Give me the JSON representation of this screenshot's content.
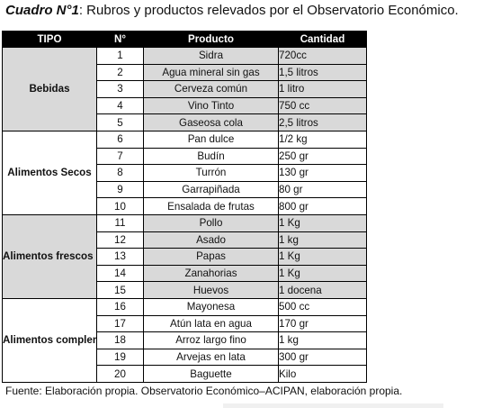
{
  "caption": {
    "lead": "Cuadro N°1",
    "text": ": Rubros y productos relevados por el Observatorio Económico."
  },
  "table": {
    "headers": [
      "TIPO",
      "N°",
      "Producto",
      "Cantidad"
    ],
    "groups": [
      {
        "label": "Bebidas",
        "rows": [
          {
            "n": "1",
            "product": "Sidra",
            "qty": "720cc"
          },
          {
            "n": "2",
            "product": "Agua mineral sin gas",
            "qty": "1,5 litros"
          },
          {
            "n": "3",
            "product": "Cerveza común",
            "qty": "1 litro"
          },
          {
            "n": "4",
            "product": "Vino Tinto",
            "qty": "750 cc"
          },
          {
            "n": "5",
            "product": "Gaseosa cola",
            "qty": "2,5 litros"
          }
        ]
      },
      {
        "label": "Alimentos Secos",
        "rows": [
          {
            "n": "6",
            "product": "Pan dulce",
            "qty": "1/2 kg"
          },
          {
            "n": "7",
            "product": "Budín",
            "qty": "250 gr"
          },
          {
            "n": "8",
            "product": "Turrón",
            "qty": "130 gr"
          },
          {
            "n": "9",
            "product": "Garrapiñada",
            "qty": "80 gr"
          },
          {
            "n": "10",
            "product": "Ensalada de frutas",
            "qty": "800 gr"
          }
        ]
      },
      {
        "label": "Alimentos frescos para la cena",
        "rows": [
          {
            "n": "11",
            "product": "Pollo",
            "qty": "1 Kg"
          },
          {
            "n": "12",
            "product": "Asado",
            "qty": "1 kg"
          },
          {
            "n": "13",
            "product": "Papas",
            "qty": "1 Kg"
          },
          {
            "n": "14",
            "product": "Zanahorias",
            "qty": "1 Kg"
          },
          {
            "n": "15",
            "product": "Huevos",
            "qty": "1 docena"
          }
        ]
      },
      {
        "label": "Alimentos complementarios de la cena",
        "rows": [
          {
            "n": "16",
            "product": "Mayonesa",
            "qty": "500 cc"
          },
          {
            "n": "17",
            "product": "Atún lata en agua",
            "qty": "170 gr"
          },
          {
            "n": "18",
            "product": "Arroz largo fino",
            "qty": "1 kg"
          },
          {
            "n": "19",
            "product": "Arvejas en lata",
            "qty": "300 gr"
          },
          {
            "n": "20",
            "product": "Baguette",
            "qty": "Kilo"
          }
        ]
      }
    ]
  },
  "footnote": "Fuente: Elaboración propia. Observatorio Económico–ACIPAN, elaboración propia.",
  "colors": {
    "header_bg": "#000000",
    "header_text": "#ffffff",
    "shade": "#d9d9d9"
  }
}
